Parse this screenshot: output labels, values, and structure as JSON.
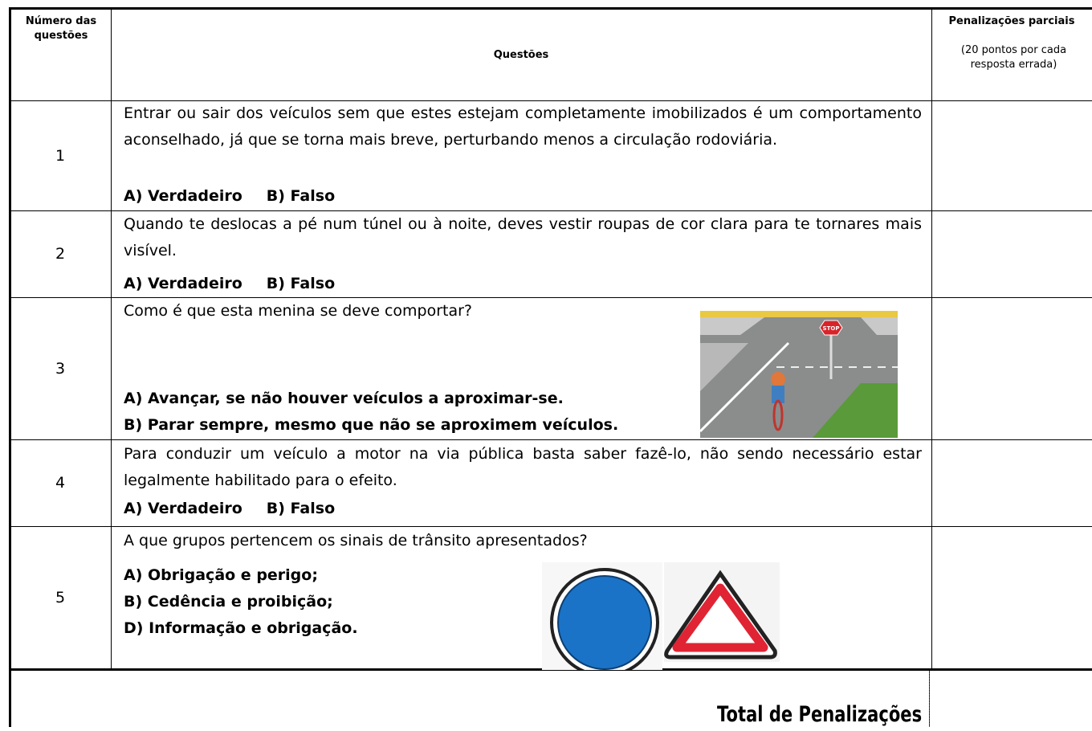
{
  "header": {
    "number": "Número das questões",
    "question": "Questões",
    "penalty_title": "Penalizações parciais",
    "penalty_note": "(20 pontos por cada resposta errada)"
  },
  "rows": [
    {
      "number": "1",
      "text": "Entrar ou sair dos veículos sem que estes estejam completamente imobilizados é um comportamento aconselhado, já que se torna mais breve, perturbando menos a circulação rodoviária.",
      "answers": [
        "A) Verdadeiro",
        "B) Falso"
      ]
    },
    {
      "number": "2",
      "text": "Quando te deslocas a pé num túnel ou à noite, deves vestir roupas de cor clara para te tornares mais visível.",
      "answers": [
        "A) Verdadeiro",
        "B) Falso"
      ]
    },
    {
      "number": "3",
      "text": "Como é que esta menina se deve comportar?",
      "answers": [
        "A) Avançar, se não houver veículos a aproximar-se.",
        "B) Parar sempre, mesmo que não se aproximem veículos."
      ]
    },
    {
      "number": "4",
      "text": "Para conduzir um veículo a motor na via pública basta saber fazê-lo, não sendo necessário estar legalmente habilitado para o efeito.",
      "answers": [
        "A) Verdadeiro",
        "B) Falso"
      ]
    },
    {
      "number": "5",
      "text": "A que grupos pertencem os sinais de trânsito apresentados?",
      "answers": [
        "A) Obrigação e perigo;",
        "B) Cedência e proibição;",
        "D) Informação e obrigação."
      ]
    }
  ],
  "footer": {
    "total": "Total de Penalizações"
  }
}
